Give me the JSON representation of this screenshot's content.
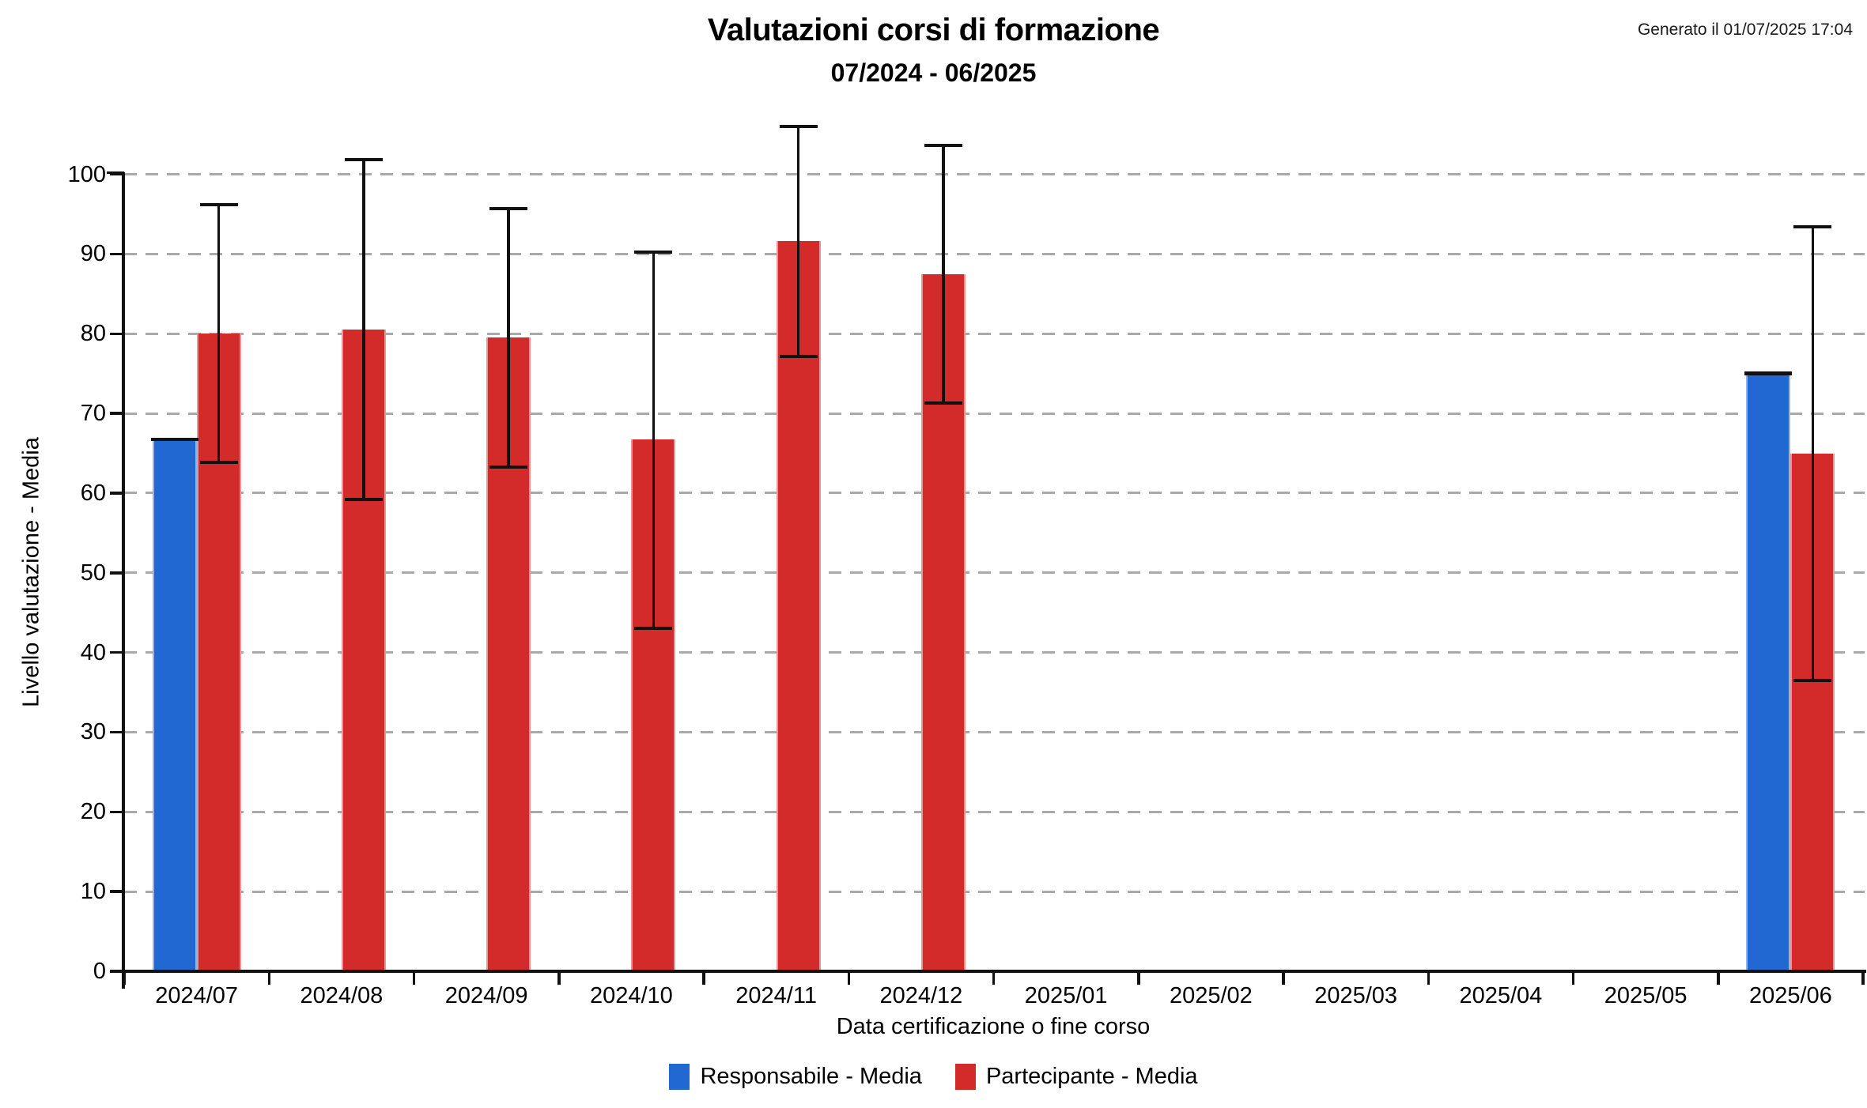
{
  "chart_data": {
    "type": "bar",
    "title": "Valutazioni corsi di formazione",
    "subtitle": "07/2024 - 06/2025",
    "generated_note": "Generato il 01/07/2025 17:04",
    "xlabel": "Data certificazione o fine corso",
    "ylabel": "Livello valutazione - Media",
    "categories": [
      "2024/07",
      "2024/08",
      "2024/09",
      "2024/10",
      "2024/11",
      "2024/12",
      "2025/01",
      "2025/02",
      "2025/03",
      "2025/04",
      "2025/05",
      "2025/06"
    ],
    "yticks": [
      0,
      10,
      20,
      30,
      40,
      50,
      60,
      70,
      80,
      90,
      100
    ],
    "ylim": [
      0,
      100
    ],
    "grid": "horizontal-dashed",
    "legend_position": "bottom-center",
    "gridline_color": "#a9a9a9",
    "error_bar_color": "#111111",
    "series": [
      {
        "name": "Responsabile - Media",
        "color": "#2268d2",
        "values": [
          66.7,
          null,
          null,
          null,
          null,
          null,
          null,
          null,
          null,
          null,
          null,
          75.0
        ],
        "error_low": [
          66.7,
          null,
          null,
          null,
          null,
          null,
          null,
          null,
          null,
          null,
          null,
          75.0
        ],
        "error_high": [
          66.7,
          null,
          null,
          null,
          null,
          null,
          null,
          null,
          null,
          null,
          null,
          75.0
        ]
      },
      {
        "name": "Partecipante - Media",
        "color": "#d32a2a",
        "values": [
          80.0,
          80.5,
          79.5,
          66.7,
          91.6,
          87.5,
          null,
          null,
          null,
          null,
          null,
          65.0
        ],
        "error_low": [
          63.9,
          59.2,
          63.3,
          43.0,
          77.2,
          71.3,
          null,
          null,
          null,
          null,
          null,
          36.5
        ],
        "error_high": [
          96.2,
          101.8,
          95.7,
          90.2,
          106.0,
          103.6,
          null,
          null,
          null,
          null,
          null,
          93.4
        ]
      }
    ]
  }
}
